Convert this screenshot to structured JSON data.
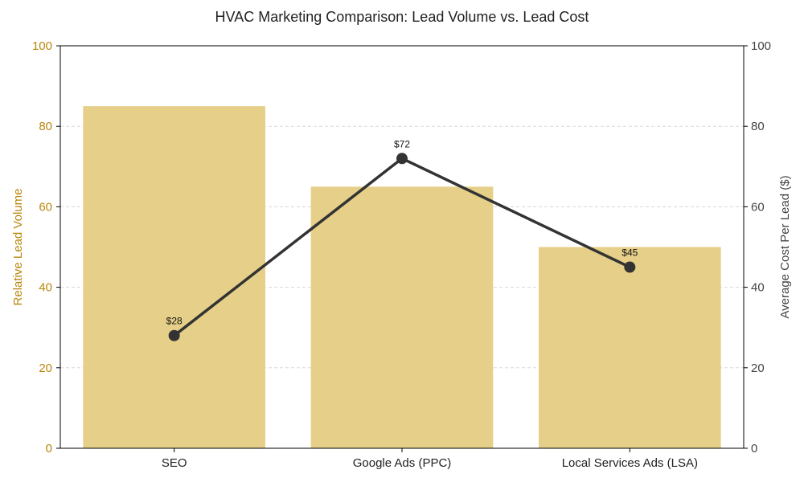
{
  "chart_data": {
    "type": "bar",
    "title": "HVAC Marketing Comparison: Lead Volume vs. Lead Cost",
    "categories": [
      "SEO",
      "Google Ads (PPC)",
      "Local Services Ads (LSA)"
    ],
    "series": [
      {
        "name": "Relative Lead Volume",
        "type": "bar",
        "axis": "left",
        "values": [
          85,
          65,
          50
        ],
        "color": "#e6cf88"
      },
      {
        "name": "Average Cost Per Lead ($)",
        "type": "line",
        "axis": "right",
        "values": [
          28,
          72,
          45
        ],
        "labels": [
          "$28",
          "$72",
          "$45"
        ],
        "color": "#333333"
      }
    ],
    "xlabel": "",
    "ylabel_left": "Relative Lead Volume",
    "ylabel_right": "Average Cost Per Lead ($)",
    "ylim_left": [
      0,
      100
    ],
    "ylim_right": [
      0,
      100
    ],
    "yticks_left": [
      "0",
      "20",
      "40",
      "60",
      "80",
      "100"
    ],
    "yticks_right": [
      "0",
      "20",
      "40",
      "60",
      "80",
      "100"
    ],
    "grid": "horizontal dashed",
    "left_axis_color": "#b8860b",
    "right_axis_color": "#444444"
  }
}
